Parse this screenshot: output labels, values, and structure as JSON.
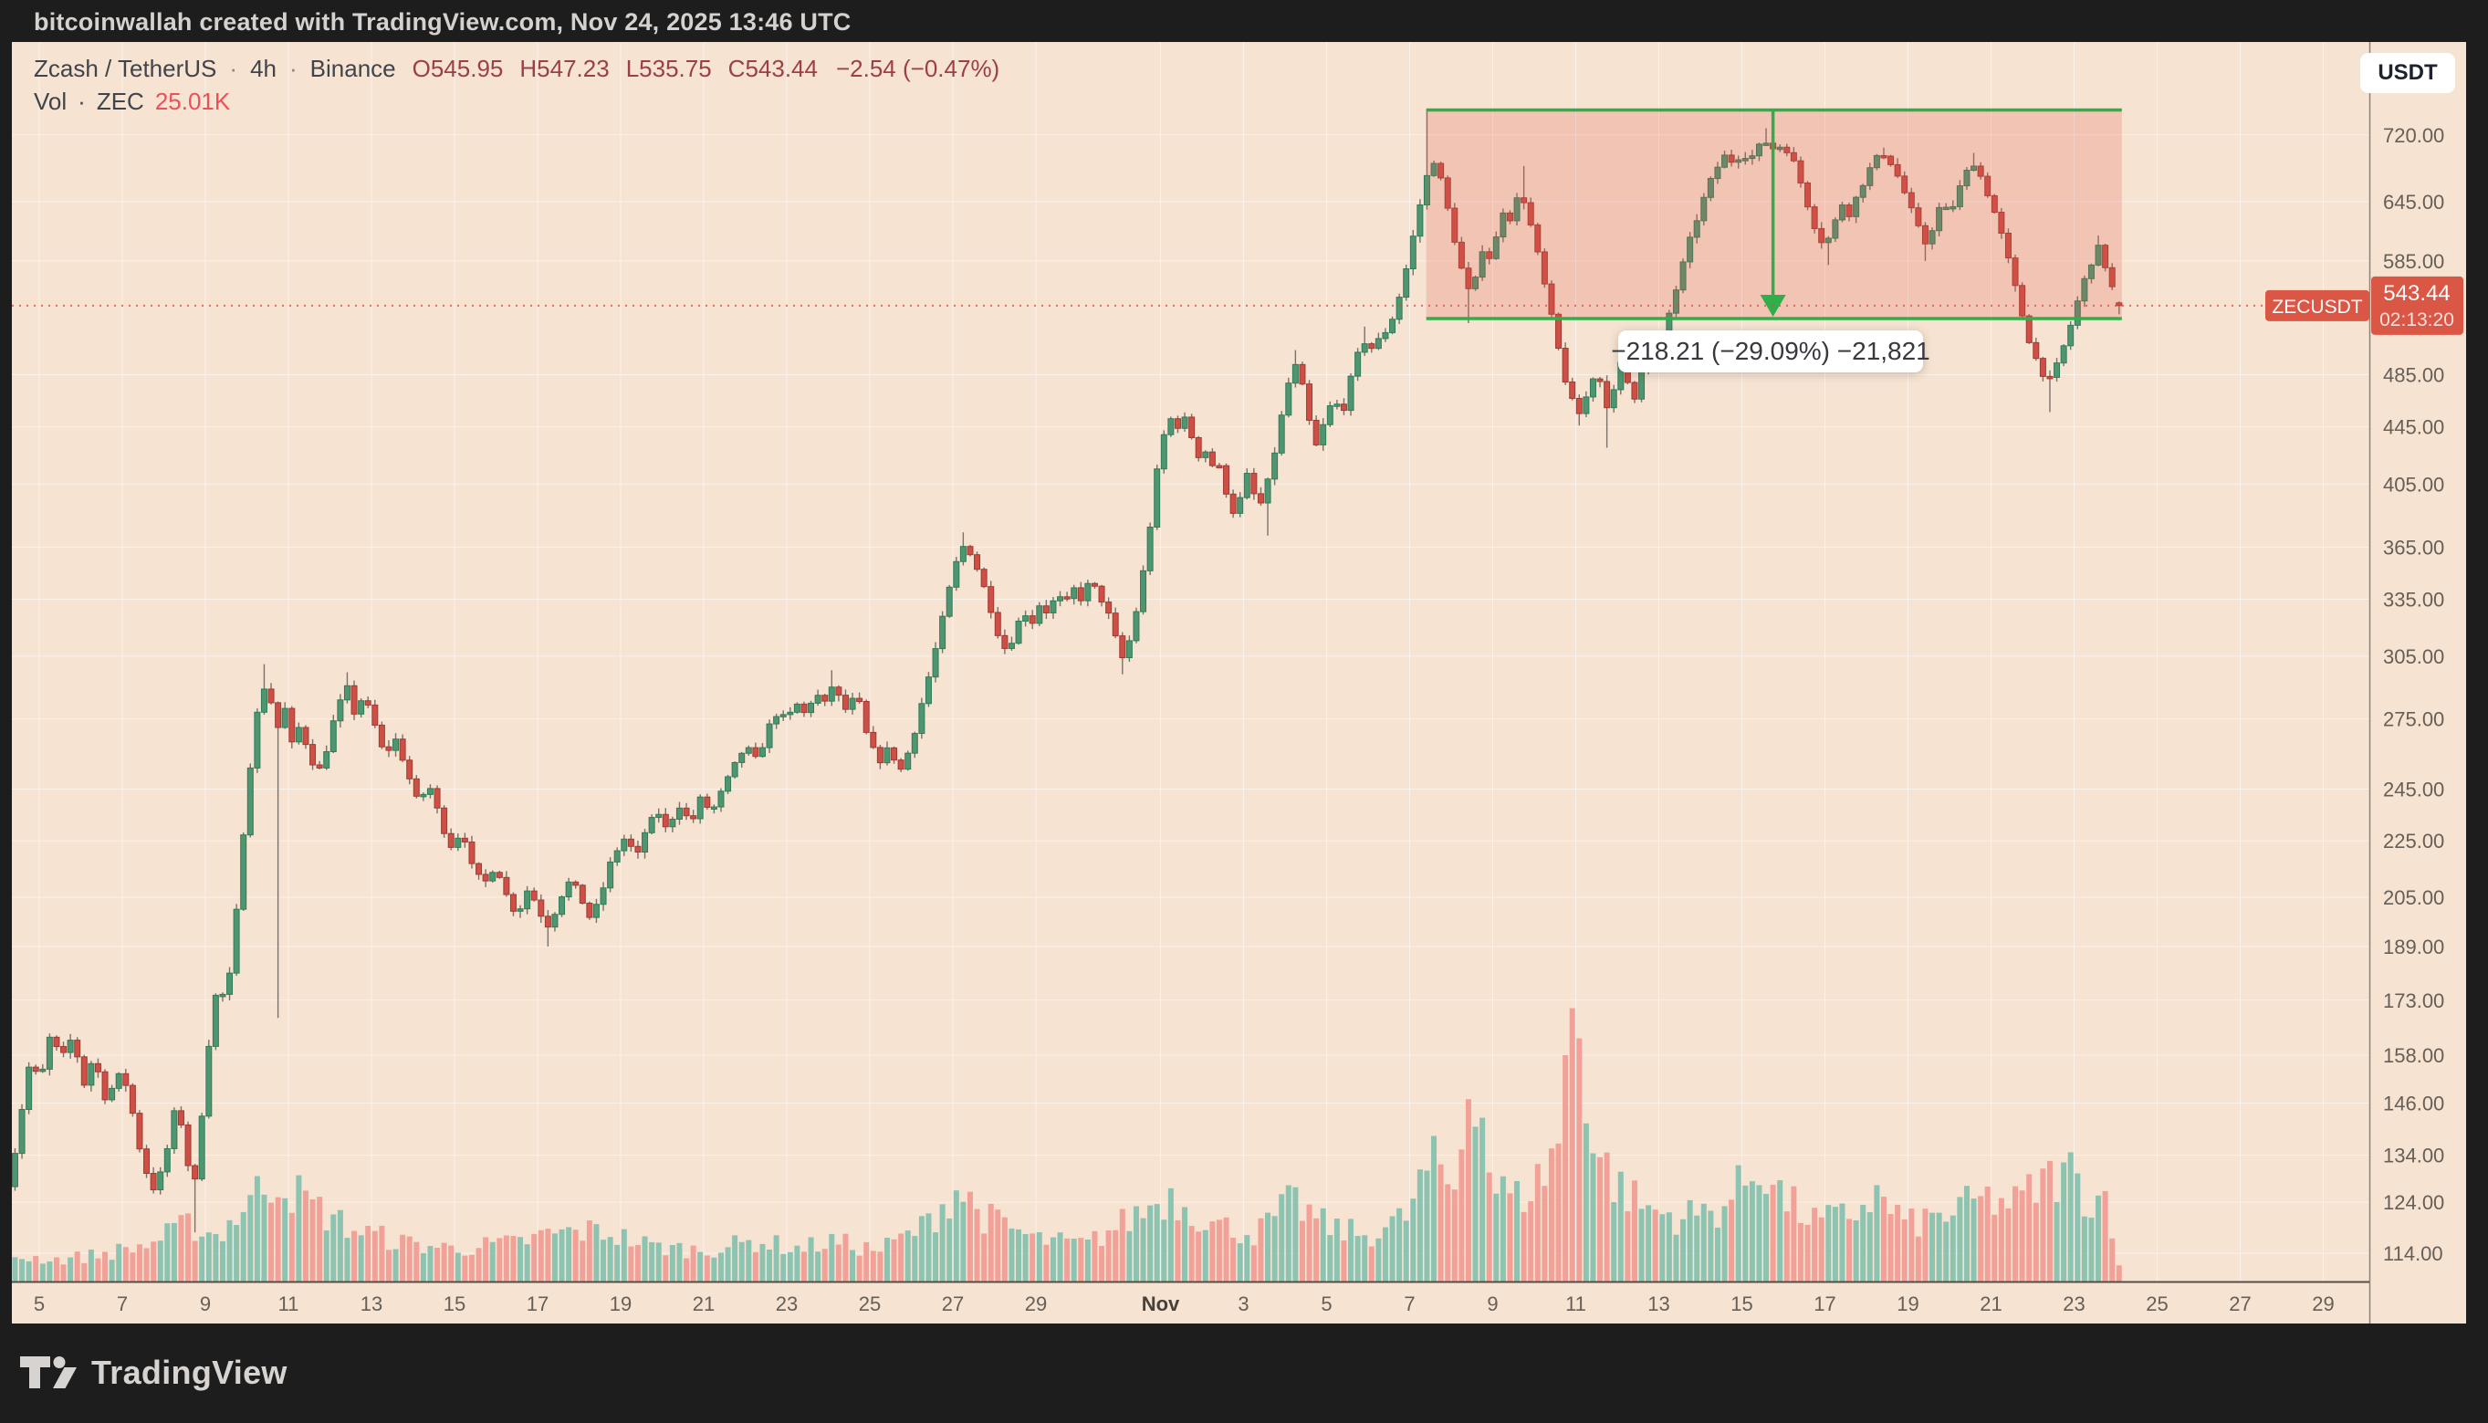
{
  "top_bar": {
    "attribution": "bitcoinwallah created with TradingView.com, Nov 24, 2025 13:46 UTC"
  },
  "header": {
    "symbol": "Zcash / TetherUS",
    "separator": "·",
    "interval": "4h",
    "exchange": "Binance",
    "ohlc": {
      "open": "O545.95",
      "high": "H547.23",
      "low": "L535.75",
      "close": "C543.44",
      "change": "−2.54 (−0.47%)"
    },
    "volume_row": {
      "label": "Vol",
      "separator": "·",
      "unit": "ZEC",
      "value": "25.01K"
    }
  },
  "price_axis": {
    "currency_button": "USDT",
    "ticks": [
      "720.00",
      "645.00",
      "585.00",
      "485.00",
      "445.00",
      "405.00",
      "365.00",
      "335.00",
      "305.00",
      "275.00",
      "245.00",
      "225.00",
      "205.00",
      "189.00",
      "173.00",
      "158.00",
      "146.00",
      "134.00",
      "124.00",
      "114.00"
    ],
    "tick_values": [
      720,
      645,
      585,
      485,
      445,
      405,
      365,
      335,
      305,
      275,
      245,
      225,
      205,
      189,
      173,
      158,
      146,
      134,
      124,
      114
    ],
    "last_price_label": {
      "price": "543.44",
      "countdown": "02:13:20"
    }
  },
  "symbol_price_tag": {
    "text": "ZECUSDT"
  },
  "time_axis": {
    "labels": [
      {
        "t": "5",
        "d": 0
      },
      {
        "t": "7",
        "d": 2
      },
      {
        "t": "9",
        "d": 4
      },
      {
        "t": "11",
        "d": 6
      },
      {
        "t": "13",
        "d": 8
      },
      {
        "t": "15",
        "d": 10
      },
      {
        "t": "17",
        "d": 12
      },
      {
        "t": "19",
        "d": 14
      },
      {
        "t": "21",
        "d": 16
      },
      {
        "t": "23",
        "d": 18
      },
      {
        "t": "25",
        "d": 20
      },
      {
        "t": "27",
        "d": 22
      },
      {
        "t": "29",
        "d": 24
      },
      {
        "t": "Nov",
        "d": 27,
        "bold": true
      },
      {
        "t": "3",
        "d": 29
      },
      {
        "t": "5",
        "d": 31
      },
      {
        "t": "7",
        "d": 33
      },
      {
        "t": "9",
        "d": 35
      },
      {
        "t": "11",
        "d": 37
      },
      {
        "t": "13",
        "d": 39
      },
      {
        "t": "15",
        "d": 41
      },
      {
        "t": "17",
        "d": 43
      },
      {
        "t": "19",
        "d": 45
      },
      {
        "t": "21",
        "d": 47
      },
      {
        "t": "23",
        "d": 49
      },
      {
        "t": "25",
        "d": 51
      },
      {
        "t": "27",
        "d": 53
      },
      {
        "t": "29",
        "d": 55
      }
    ]
  },
  "measure_tool": {
    "tooltip": "−218.21 (−29.09%) −21,821",
    "change_abs": -218.21,
    "change_pct": -29.09,
    "ticks": -21821,
    "start_price": 750.2,
    "end_price": 532.0,
    "start_day": 33.4,
    "end_day": 50.15,
    "arrow_day": 41.75
  },
  "footer": {
    "brand": "TradingView"
  },
  "colors": {
    "background": "#f6e3d2",
    "up_candle": "#4f9571",
    "up_border": "#2f7c55",
    "down_candle": "#cd4f45",
    "down_border": "#a03a32",
    "wick": "#7a716a",
    "vol_up": "#8cc3b1",
    "vol_down": "#f2a198",
    "grid": "rgba(255,255,255,0.55)",
    "axis_text": "#655f58",
    "price_tag_bg": "#db5745",
    "measure_green": "#2fae49",
    "measure_fill": "rgba(225,85,72,0.22)",
    "price_line": "#d7493f",
    "pane_border": "#8c8379"
  },
  "chart_data": {
    "type": "candlestick",
    "symbol": "ZECUSDT",
    "exchange": "Binance",
    "interval": "4h",
    "title": "Zcash / TetherUS · 4h · Binance",
    "y_axis": {
      "scale": "log",
      "range": [
        110,
        760
      ],
      "ticks": [
        720,
        645,
        585,
        485,
        445,
        405,
        365,
        335,
        305,
        275,
        245,
        225,
        205,
        189,
        173,
        158,
        146,
        134,
        124,
        114
      ]
    },
    "x_axis": {
      "start": "Oct 4 2025",
      "end": "Nov 30 2025",
      "visible_days": 57,
      "candles_per_day": 6
    },
    "last_candle": {
      "open": 545.95,
      "high": 547.23,
      "low": 535.75,
      "close": 543.44,
      "change": -2.54,
      "change_pct": -0.47,
      "volume": "25.01K"
    },
    "close_path_anchors": [
      [
        -0.7,
        128
      ],
      [
        -0.5,
        140
      ],
      [
        -0.2,
        158
      ],
      [
        0,
        150
      ],
      [
        0.3,
        165
      ],
      [
        0.5,
        156
      ],
      [
        0.8,
        163
      ],
      [
        1.1,
        150
      ],
      [
        1.3,
        158
      ],
      [
        1.6,
        147
      ],
      [
        2.0,
        154
      ],
      [
        2.2,
        146
      ],
      [
        2.5,
        132
      ],
      [
        2.8,
        126
      ],
      [
        3.1,
        136
      ],
      [
        3.3,
        146
      ],
      [
        3.5,
        138
      ],
      [
        3.7,
        124
      ],
      [
        3.9,
        142
      ],
      [
        4.1,
        163
      ],
      [
        4.3,
        178
      ],
      [
        4.5,
        172
      ],
      [
        4.7,
        192
      ],
      [
        4.9,
        226
      ],
      [
        5.1,
        258
      ],
      [
        5.3,
        284
      ],
      [
        5.5,
        294
      ],
      [
        5.7,
        268
      ],
      [
        5.9,
        281
      ],
      [
        6.1,
        262
      ],
      [
        6.3,
        274
      ],
      [
        6.5,
        258
      ],
      [
        6.8,
        252
      ],
      [
        7.0,
        269
      ],
      [
        7.2,
        280
      ],
      [
        7.4,
        290
      ],
      [
        7.6,
        277
      ],
      [
        7.8,
        286
      ],
      [
        8.1,
        271
      ],
      [
        8.3,
        259
      ],
      [
        8.6,
        266
      ],
      [
        8.9,
        250
      ],
      [
        9.1,
        240
      ],
      [
        9.4,
        246
      ],
      [
        9.7,
        231
      ],
      [
        9.9,
        223
      ],
      [
        10.2,
        229
      ],
      [
        10.4,
        216
      ],
      [
        10.7,
        209
      ],
      [
        11.0,
        217
      ],
      [
        11.2,
        207
      ],
      [
        11.5,
        199
      ],
      [
        11.8,
        209
      ],
      [
        12.0,
        201
      ],
      [
        12.3,
        195
      ],
      [
        12.5,
        204
      ],
      [
        12.8,
        211
      ],
      [
        13.1,
        203
      ],
      [
        13.3,
        197
      ],
      [
        13.6,
        209
      ],
      [
        13.8,
        219
      ],
      [
        14.1,
        226
      ],
      [
        14.4,
        219
      ],
      [
        14.6,
        229
      ],
      [
        14.9,
        236
      ],
      [
        15.1,
        229
      ],
      [
        15.4,
        239
      ],
      [
        15.7,
        231
      ],
      [
        15.9,
        241
      ],
      [
        16.2,
        236
      ],
      [
        16.5,
        246
      ],
      [
        16.7,
        253
      ],
      [
        17.0,
        263
      ],
      [
        17.3,
        256
      ],
      [
        17.5,
        269
      ],
      [
        17.8,
        279
      ],
      [
        18.0,
        273
      ],
      [
        18.2,
        283
      ],
      [
        18.4,
        277
      ],
      [
        18.7,
        287
      ],
      [
        18.9,
        281
      ],
      [
        19.1,
        291
      ],
      [
        19.4,
        279
      ],
      [
        19.7,
        286
      ],
      [
        19.9,
        269
      ],
      [
        20.2,
        256
      ],
      [
        20.5,
        263
      ],
      [
        20.7,
        251
      ],
      [
        20.9,
        259
      ],
      [
        21.1,
        271
      ],
      [
        21.3,
        286
      ],
      [
        21.5,
        301
      ],
      [
        21.7,
        319
      ],
      [
        21.9,
        339
      ],
      [
        22.1,
        357
      ],
      [
        22.3,
        368
      ],
      [
        22.5,
        358
      ],
      [
        22.7,
        345
      ],
      [
        22.9,
        331
      ],
      [
        23.1,
        316
      ],
      [
        23.3,
        307
      ],
      [
        23.5,
        318
      ],
      [
        23.7,
        329
      ],
      [
        23.9,
        322
      ],
      [
        24.1,
        333
      ],
      [
        24.3,
        327
      ],
      [
        24.5,
        338
      ],
      [
        24.7,
        331
      ],
      [
        24.9,
        341
      ],
      [
        25.1,
        335
      ],
      [
        25.3,
        345
      ],
      [
        25.5,
        338
      ],
      [
        25.7,
        330
      ],
      [
        25.9,
        315
      ],
      [
        26.1,
        303
      ],
      [
        26.3,
        316
      ],
      [
        26.5,
        338
      ],
      [
        26.7,
        368
      ],
      [
        26.85,
        400
      ],
      [
        27.0,
        430
      ],
      [
        27.15,
        446
      ],
      [
        27.3,
        453
      ],
      [
        27.45,
        444
      ],
      [
        27.6,
        451
      ],
      [
        27.75,
        438
      ],
      [
        27.9,
        424
      ],
      [
        28.05,
        431
      ],
      [
        28.2,
        416
      ],
      [
        28.35,
        422
      ],
      [
        28.5,
        408
      ],
      [
        28.65,
        394
      ],
      [
        28.8,
        384
      ],
      [
        28.95,
        398
      ],
      [
        29.1,
        412
      ],
      [
        29.25,
        398
      ],
      [
        29.4,
        391
      ],
      [
        29.55,
        402
      ],
      [
        29.7,
        420
      ],
      [
        29.85,
        442
      ],
      [
        30.0,
        466
      ],
      [
        30.15,
        488
      ],
      [
        30.3,
        493
      ],
      [
        30.45,
        470
      ],
      [
        30.6,
        446
      ],
      [
        30.75,
        431
      ],
      [
        30.9,
        444
      ],
      [
        31.05,
        458
      ],
      [
        31.2,
        466
      ],
      [
        31.35,
        452
      ],
      [
        31.5,
        470
      ],
      [
        31.65,
        490
      ],
      [
        31.8,
        506
      ],
      [
        31.95,
        514
      ],
      [
        32.1,
        506
      ],
      [
        32.25,
        513
      ],
      [
        32.4,
        520
      ],
      [
        32.55,
        529
      ],
      [
        32.7,
        545
      ],
      [
        32.85,
        566
      ],
      [
        33.0,
        592
      ],
      [
        33.15,
        622
      ],
      [
        33.3,
        652
      ],
      [
        33.45,
        678
      ],
      [
        33.55,
        693
      ],
      [
        33.65,
        686
      ],
      [
        33.75,
        668
      ],
      [
        33.9,
        640
      ],
      [
        34.05,
        612
      ],
      [
        34.2,
        585
      ],
      [
        34.35,
        562
      ],
      [
        34.5,
        550
      ],
      [
        34.65,
        580
      ],
      [
        34.8,
        606
      ],
      [
        34.95,
        584
      ],
      [
        35.1,
        610
      ],
      [
        35.25,
        636
      ],
      [
        35.4,
        626
      ],
      [
        35.55,
        645
      ],
      [
        35.7,
        654
      ],
      [
        35.85,
        632
      ],
      [
        36.0,
        605
      ],
      [
        36.15,
        580
      ],
      [
        36.3,
        553
      ],
      [
        36.45,
        527
      ],
      [
        36.6,
        503
      ],
      [
        36.75,
        481
      ],
      [
        36.9,
        465
      ],
      [
        37.05,
        453
      ],
      [
        37.2,
        462
      ],
      [
        37.35,
        478
      ],
      [
        37.5,
        490
      ],
      [
        37.65,
        472
      ],
      [
        37.8,
        457
      ],
      [
        37.95,
        475
      ],
      [
        38.1,
        495
      ],
      [
        38.25,
        479
      ],
      [
        38.4,
        466
      ],
      [
        38.55,
        486
      ],
      [
        38.7,
        502
      ],
      [
        38.85,
        488
      ],
      [
        39.0,
        508
      ],
      [
        39.2,
        530
      ],
      [
        39.4,
        556
      ],
      [
        39.6,
        584
      ],
      [
        39.8,
        612
      ],
      [
        40.0,
        638
      ],
      [
        40.2,
        662
      ],
      [
        40.4,
        682
      ],
      [
        40.6,
        696
      ],
      [
        40.8,
        688
      ],
      [
        41.0,
        700
      ],
      [
        41.2,
        692
      ],
      [
        41.4,
        705
      ],
      [
        41.6,
        712
      ],
      [
        41.8,
        702
      ],
      [
        42.0,
        710
      ],
      [
        42.2,
        694
      ],
      [
        42.4,
        668
      ],
      [
        42.6,
        640
      ],
      [
        42.8,
        614
      ],
      [
        43.0,
        599
      ],
      [
        43.2,
        618
      ],
      [
        43.4,
        644
      ],
      [
        43.6,
        632
      ],
      [
        43.8,
        654
      ],
      [
        44.0,
        674
      ],
      [
        44.2,
        690
      ],
      [
        44.4,
        699
      ],
      [
        44.6,
        687
      ],
      [
        44.8,
        668
      ],
      [
        45.0,
        645
      ],
      [
        45.2,
        622
      ],
      [
        45.4,
        601
      ],
      [
        45.6,
        619
      ],
      [
        45.8,
        644
      ],
      [
        46.0,
        631
      ],
      [
        46.2,
        655
      ],
      [
        46.4,
        676
      ],
      [
        46.6,
        689
      ],
      [
        46.8,
        667
      ],
      [
        47.0,
        645
      ],
      [
        47.2,
        618
      ],
      [
        47.4,
        588
      ],
      [
        47.6,
        557
      ],
      [
        47.8,
        528
      ],
      [
        48.0,
        504
      ],
      [
        48.2,
        489
      ],
      [
        48.4,
        479
      ],
      [
        48.6,
        493
      ],
      [
        48.8,
        513
      ],
      [
        49.0,
        536
      ],
      [
        49.15,
        556
      ],
      [
        49.3,
        572
      ],
      [
        49.45,
        588
      ],
      [
        49.6,
        598
      ],
      [
        49.7,
        587
      ],
      [
        49.8,
        574
      ],
      [
        49.9,
        561
      ],
      [
        50.0,
        552
      ],
      [
        50.1,
        543.44
      ]
    ],
    "wick_extremes": [
      [
        3.7,
        "l",
        118
      ],
      [
        5.5,
        "h",
        301
      ],
      [
        5.7,
        "l",
        168
      ],
      [
        7.4,
        "h",
        297
      ],
      [
        12.3,
        "l",
        189
      ],
      [
        19.1,
        "h",
        298
      ],
      [
        22.3,
        "h",
        374
      ],
      [
        26.1,
        "l",
        296
      ],
      [
        29.55,
        "l",
        372
      ],
      [
        30.3,
        "h",
        505
      ],
      [
        31.95,
        "h",
        525
      ],
      [
        33.45,
        "h",
        750.2
      ],
      [
        34.5,
        "l",
        528
      ],
      [
        35.7,
        "h",
        684
      ],
      [
        37.05,
        "l",
        446
      ],
      [
        37.8,
        "l",
        430
      ],
      [
        41.6,
        "h",
        728
      ],
      [
        43.0,
        "l",
        581
      ],
      [
        44.4,
        "h",
        705
      ],
      [
        45.4,
        "l",
        585
      ],
      [
        46.6,
        "h",
        699
      ],
      [
        48.4,
        "l",
        456
      ],
      [
        49.6,
        "h",
        610
      ]
    ],
    "volume_profile_anchors": [
      [
        -0.7,
        28
      ],
      [
        0.5,
        24
      ],
      [
        1.5,
        30
      ],
      [
        2.6,
        40
      ],
      [
        3.6,
        62
      ],
      [
        4.3,
        50
      ],
      [
        5.2,
        95
      ],
      [
        5.7,
        115
      ],
      [
        6.5,
        85
      ],
      [
        7.5,
        58
      ],
      [
        8.8,
        42
      ],
      [
        10,
        36
      ],
      [
        11.5,
        42
      ],
      [
        12.3,
        52
      ],
      [
        13.5,
        56
      ],
      [
        14.8,
        38
      ],
      [
        16,
        34
      ],
      [
        17.3,
        44
      ],
      [
        18.3,
        36
      ],
      [
        19.1,
        44
      ],
      [
        20.2,
        34
      ],
      [
        21.3,
        60
      ],
      [
        22.1,
        102
      ],
      [
        22.8,
        70
      ],
      [
        24,
        46
      ],
      [
        25.2,
        40
      ],
      [
        26.5,
        75
      ],
      [
        27.2,
        95
      ],
      [
        28.3,
        62
      ],
      [
        29.3,
        52
      ],
      [
        30.2,
        88
      ],
      [
        31,
        60
      ],
      [
        32,
        50
      ],
      [
        32.9,
        70
      ],
      [
        33.5,
        130
      ],
      [
        34.1,
        100
      ],
      [
        34.5,
        255
      ],
      [
        35,
        105
      ],
      [
        35.6,
        90
      ],
      [
        36.2,
        115
      ],
      [
        36.6,
        160
      ],
      [
        37,
        335
      ],
      [
        37.4,
        150
      ],
      [
        38,
        105
      ],
      [
        38.7,
        80
      ],
      [
        39.5,
        70
      ],
      [
        40.5,
        80
      ],
      [
        41.5,
        130
      ],
      [
        42,
        90
      ],
      [
        42.8,
        65
      ],
      [
        43.6,
        72
      ],
      [
        44.2,
        95
      ],
      [
        45,
        62
      ],
      [
        46,
        74
      ],
      [
        46.8,
        90
      ],
      [
        47.6,
        85
      ],
      [
        48.3,
        110
      ],
      [
        48.9,
        120
      ],
      [
        49.4,
        88
      ],
      [
        49.8,
        95
      ],
      [
        50.1,
        18
      ]
    ]
  }
}
